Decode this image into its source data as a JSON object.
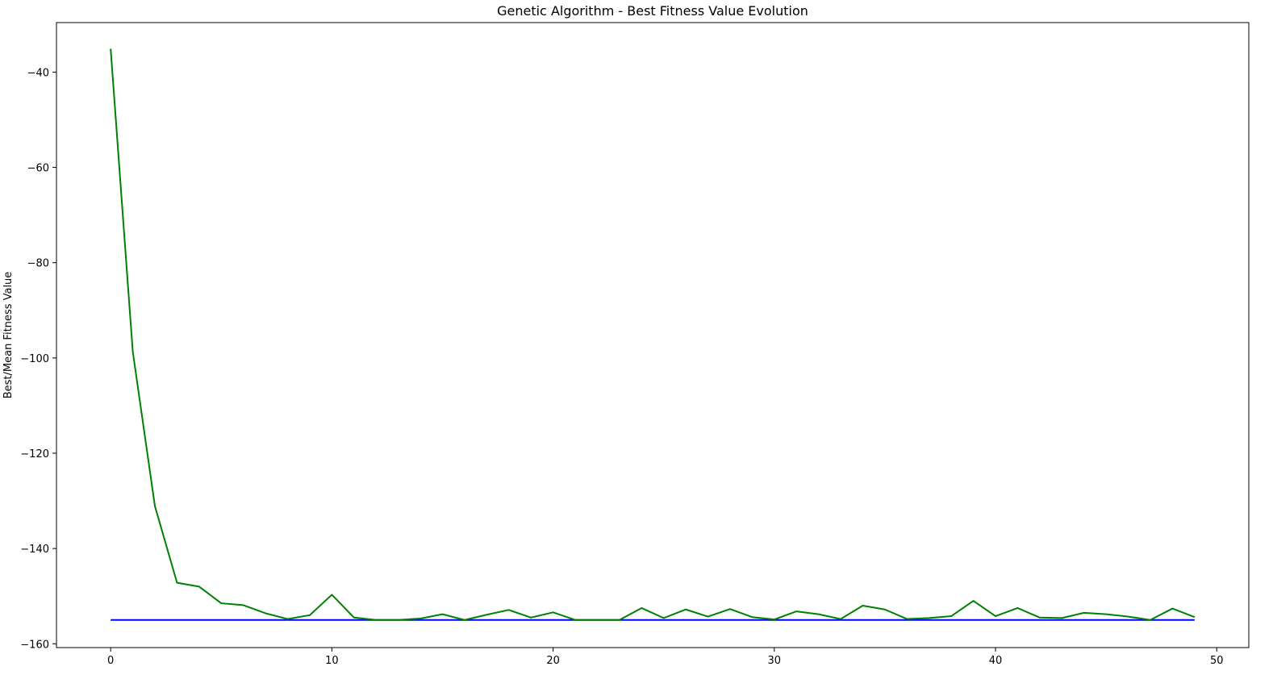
{
  "chart_data": {
    "type": "line",
    "title": "Genetic Algorithm - Best Fitness Value Evolution",
    "xlabel": "",
    "ylabel": "Best/Mean Fitness Value",
    "xlim": [
      -2.45,
      51.45
    ],
    "ylim": [
      -160.8,
      -29.6
    ],
    "xticks": [
      0,
      10,
      20,
      30,
      40,
      50
    ],
    "yticks": [
      -160,
      -140,
      -120,
      -100,
      -80,
      -60,
      -40
    ],
    "grid": false,
    "x": [
      0,
      1,
      2,
      3,
      4,
      5,
      6,
      7,
      8,
      9,
      10,
      11,
      12,
      13,
      14,
      15,
      16,
      17,
      18,
      19,
      20,
      21,
      22,
      23,
      24,
      25,
      26,
      27,
      28,
      29,
      30,
      31,
      32,
      33,
      34,
      35,
      36,
      37,
      38,
      39,
      40,
      41,
      42,
      43,
      44,
      45,
      46,
      47,
      48,
      49
    ],
    "series": [
      {
        "color": "#0000ff",
        "values": [
          -155,
          -155,
          -155,
          -155,
          -155,
          -155,
          -155,
          -155,
          -155,
          -155,
          -155,
          -155,
          -155,
          -155,
          -155,
          -155,
          -155,
          -155,
          -155,
          -155,
          -155,
          -155,
          -155,
          -155,
          -155,
          -155,
          -155,
          -155,
          -155,
          -155,
          -155,
          -155,
          -155,
          -155,
          -155,
          -155,
          -155,
          -155,
          -155,
          -155,
          -155,
          -155,
          -155,
          -155,
          -155,
          -155,
          -155,
          -155,
          -155,
          -155
        ]
      },
      {
        "color": "#008000",
        "values": [
          -35.1,
          -98.7,
          -131.1,
          -147.2,
          -148.0,
          -151.5,
          -151.9,
          -153.6,
          -154.8,
          -154.0,
          -149.7,
          -154.5,
          -155.0,
          -155.0,
          -154.7,
          -153.8,
          -155.0,
          -153.9,
          -152.9,
          -154.5,
          -153.4,
          -155.0,
          -155.0,
          -155.0,
          -152.5,
          -154.6,
          -152.8,
          -154.3,
          -152.7,
          -154.4,
          -154.9,
          -153.2,
          -153.8,
          -154.8,
          -152.0,
          -152.8,
          -154.8,
          -154.6,
          -154.2,
          -151.0,
          -154.2,
          -152.5,
          -154.5,
          -154.6,
          -153.5,
          -153.8,
          -154.3,
          -155.0,
          -152.6,
          -154.4
        ]
      }
    ]
  }
}
